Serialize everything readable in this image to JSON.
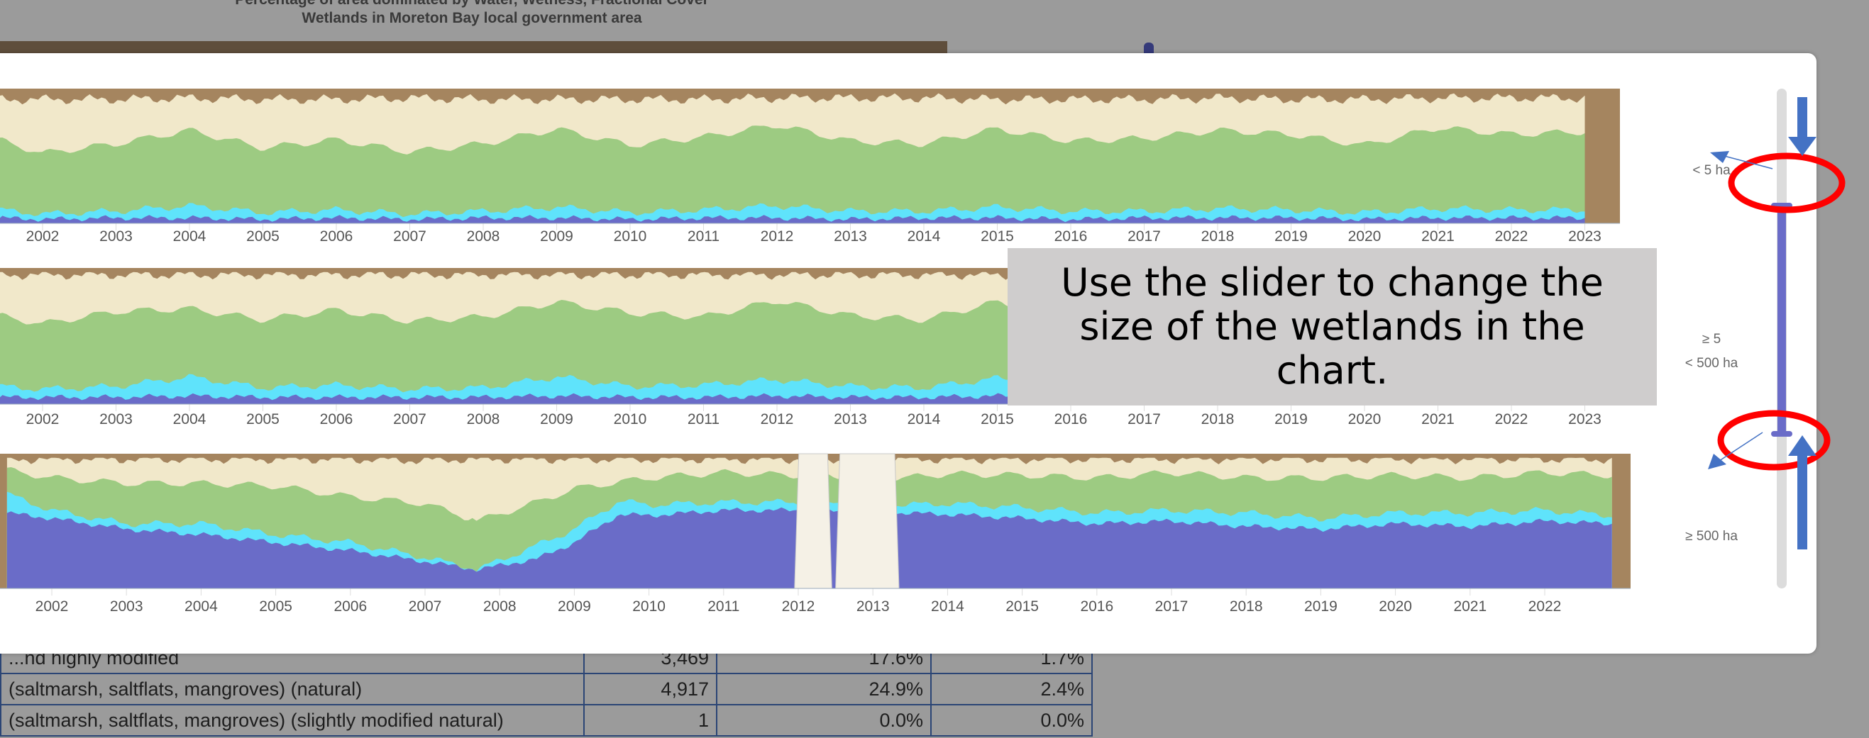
{
  "background": {
    "title_line1": "Percentage of area dominated by Water, Wetness, Fractional Cover",
    "title_line2": "Wetlands in Moreton Bay local government area",
    "table_rows": [
      {
        "label": "...nd highly modified",
        "area": "3,469",
        "pct1": "17.6%",
        "pct2": "1.7%"
      },
      {
        "label": "(saltmarsh, saltflats, mangroves) (natural)",
        "area": "4,917",
        "pct1": "24.9%",
        "pct2": "2.4%"
      },
      {
        "label": "(saltmarsh, saltflats, mangroves) (slightly modified natural)",
        "area": "1",
        "pct1": "0.0%",
        "pct2": "0.0%"
      }
    ]
  },
  "callout": {
    "text": "Use the slider to change the size of the wetlands in the chart."
  },
  "slider": {
    "labels": {
      "small": "< 5 ha",
      "medium_line1": "≥ 5",
      "medium_line2": "< 500 ha",
      "large": "≥ 500 ha"
    },
    "selected_range": [
      "< 5 ha",
      "≥ 500 ha"
    ],
    "colors": {
      "track": "#dcdcdc",
      "range": "#6a6cc8",
      "highlight": "#ff0000",
      "arrow": "#4472c4"
    }
  },
  "colors": {
    "series": [
      "#6a6cc8",
      "#5fe3fb",
      "#9dcb82",
      "#f1e8ca",
      "#a5855f"
    ],
    "no_data": "#f5f1e6"
  },
  "chart_data": [
    {
      "type": "area",
      "stacked": true,
      "group": "< 5 ha",
      "ylim": [
        0,
        100
      ],
      "x_ticks": [
        2002,
        2003,
        2004,
        2005,
        2006,
        2007,
        2008,
        2009,
        2010,
        2011,
        2012,
        2013,
        2014,
        2015,
        2016,
        2017,
        2018,
        2019,
        2020,
        2021,
        2022,
        2023
      ],
      "x": [
        2001.4,
        2002,
        2003,
        2004,
        2005,
        2006,
        2007,
        2008,
        2009,
        2010,
        2011,
        2012,
        2013,
        2014,
        2015,
        2016,
        2017,
        2018,
        2019,
        2020,
        2021,
        2022,
        2023
      ],
      "series": [
        {
          "values": [
            4,
            3,
            4,
            4,
            3,
            4,
            3,
            4,
            4,
            3,
            4,
            4,
            3,
            4,
            4,
            3,
            4,
            4,
            4,
            3,
            4,
            4,
            4
          ]
        },
        {
          "values": [
            6,
            4,
            5,
            9,
            5,
            6,
            4,
            5,
            8,
            5,
            6,
            9,
            6,
            5,
            8,
            6,
            5,
            7,
            6,
            5,
            7,
            6,
            6
          ]
        },
        {
          "values": [
            52,
            45,
            50,
            56,
            48,
            52,
            46,
            50,
            58,
            50,
            54,
            60,
            52,
            50,
            58,
            52,
            54,
            58,
            56,
            50,
            60,
            56,
            58
          ]
        },
        {
          "values": [
            30,
            40,
            33,
            24,
            36,
            30,
            40,
            33,
            22,
            34,
            28,
            20,
            32,
            34,
            22,
            31,
            29,
            24,
            26,
            34,
            22,
            27,
            25
          ]
        }
      ]
    },
    {
      "type": "area",
      "stacked": true,
      "group": "≥ 5 < 500 ha",
      "ylim": [
        0,
        100
      ],
      "x_ticks": [
        2002,
        2003,
        2004,
        2005,
        2006,
        2007,
        2008,
        2009,
        2010,
        2011,
        2012,
        2013,
        2014,
        2015,
        2016,
        2017,
        2018,
        2019,
        2020,
        2021,
        2022,
        2023
      ],
      "x": [
        2001.4,
        2002,
        2003,
        2004,
        2005,
        2006,
        2007,
        2008,
        2009,
        2010,
        2011,
        2012,
        2013,
        2014,
        2015,
        2016,
        2017,
        2018,
        2019,
        2020,
        2021,
        2022,
        2023
      ],
      "series": [
        {
          "values": [
            5,
            5,
            5,
            6,
            5,
            5,
            5,
            5,
            6,
            5,
            5,
            6,
            5,
            5,
            6,
            5,
            5,
            6,
            5,
            5,
            6,
            5,
            5
          ]
        },
        {
          "values": [
            8,
            6,
            8,
            14,
            7,
            9,
            6,
            7,
            14,
            8,
            9,
            12,
            8,
            7,
            13,
            9,
            8,
            11,
            9,
            8,
            12,
            9,
            10
          ]
        },
        {
          "values": [
            52,
            48,
            55,
            50,
            50,
            55,
            50,
            52,
            55,
            54,
            50,
            58,
            52,
            50,
            56,
            52,
            54,
            55,
            52,
            50,
            58,
            54,
            56
          ]
        },
        {
          "values": [
            30,
            36,
            27,
            25,
            33,
            26,
            34,
            31,
            20,
            28,
            31,
            19,
            30,
            33,
            20,
            29,
            28,
            23,
            29,
            32,
            19,
            27,
            24
          ]
        }
      ]
    },
    {
      "type": "area",
      "stacked": true,
      "group": "≥ 500 ha",
      "ylim": [
        0,
        100
      ],
      "x_ticks": [
        2002,
        2003,
        2004,
        2005,
        2006,
        2007,
        2008,
        2009,
        2010,
        2011,
        2012,
        2013,
        2014,
        2015,
        2016,
        2017,
        2018,
        2019,
        2020,
        2021,
        2022
      ],
      "x": [
        2001.4,
        2002,
        2003,
        2004,
        2005,
        2006,
        2007,
        2007.7,
        2008.5,
        2009,
        2009.6,
        2010,
        2011,
        2011.9,
        2013.4,
        2014,
        2015,
        2016,
        2017,
        2018,
        2019,
        2020,
        2021,
        2022,
        2022.9
      ],
      "series": [
        {
          "values": [
            56,
            52,
            44,
            40,
            34,
            28,
            20,
            14,
            22,
            34,
            55,
            54,
            58,
            58,
            56,
            55,
            52,
            48,
            50,
            46,
            44,
            48,
            46,
            50,
            48
          ]
        },
        {
          "values": [
            14,
            6,
            4,
            8,
            6,
            6,
            3,
            0,
            10,
            10,
            10,
            8,
            6,
            6,
            6,
            8,
            8,
            8,
            8,
            10,
            8,
            8,
            10,
            8,
            6
          ]
        },
        {
          "values": [
            18,
            24,
            30,
            30,
            36,
            34,
            40,
            36,
            32,
            30,
            14,
            20,
            22,
            20,
            20,
            22,
            24,
            26,
            28,
            26,
            30,
            28,
            26,
            28,
            30
          ]
        },
        {
          "values": [
            8,
            14,
            18,
            18,
            20,
            28,
            32,
            46,
            32,
            22,
            17,
            14,
            10,
            12,
            14,
            11,
            12,
            14,
            10,
            14,
            14,
            12,
            14,
            10,
            12
          ]
        }
      ],
      "no_data_ranges": [
        [
          2011.95,
          2012.45
        ],
        [
          2012.5,
          2013.35
        ]
      ]
    }
  ]
}
